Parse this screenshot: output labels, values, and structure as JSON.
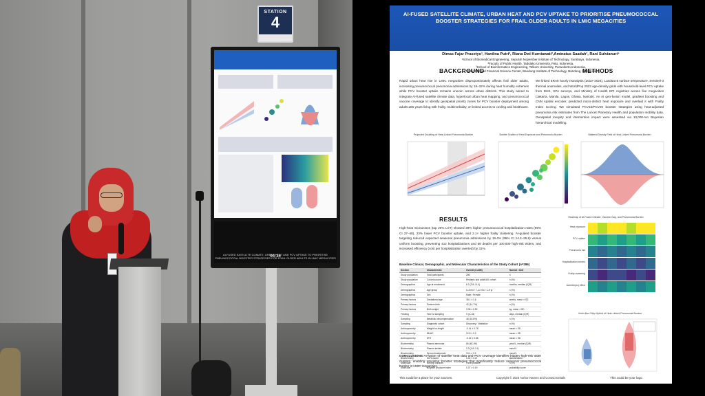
{
  "photo": {
    "station_sign": {
      "label": "STATION",
      "number": "4"
    },
    "monitor": {
      "footer_text": "AI-FUSED SATELLITE CLIMATE, URBAN HEAT AND PCV UPTAKE TO PRIORITISE PNEUMOCOCCAL BOOSTER STRATEGIES FOR FRAIL OLDER ADULTS IN LMIC MEGACITIES",
      "time": "04:14"
    }
  },
  "poster": {
    "title": "AI-FUSED SATELLITE CLIMATE, URBAN HEAT AND PCV UPTAKE TO PRIORITISE PNEUMOCOCCAL BOOSTER STRATEGIES FOR FRAIL OLDER ADULTS IN LMIC MEGACITIES",
    "authors": "Dimas Fajar Prasetyo¹, Hardina Putri², Riana Dwi Kurniawati³,Aminatus Saadah³, Rani Sulvianuri⁴",
    "affiliations": [
      "¹School of Biomedical Engineering, Sepuluh Nopember Institute of Technology, Surabaya, Indonesia,",
      "²Faculty of Public Health, Tadulako University, Palu, Indonesia,",
      "³School of Bioinformatics Engineering, Telkom University, Purwokerto,Indonesia,",
      "⁴Industrial and Financial Science Center, Bandung Institute of Technology, Bandung, Indonesia"
    ],
    "sections": {
      "background_heading": "BACKGROUND",
      "background_text": "Rapid urban heat rise in LMIC megacities disproportionately affects frail older adults, increasing pneumococcal pneumonia admissions by 18–32% during heat humidity extremes while PCV booster uptake remains uneven across urban districts. This study aimed to integrate AI-fused satellite climate data, hyperlocal urban heat mapping, and pneumococcal vaccine coverage to identify geospatial priority zones for PCV booster deployment among adults ≥65 years living with frailty, multimorbidity, or limited access to cooling and healthcare.",
      "methods_heading": "METHODS",
      "methods_text": "We linked ERA5 hourly reanalysis (2010–2024), Landsat 8 surface temperature, Sentinel-3 thermal anomalies, and WorldPop 2023 age-density grids with household-level PCV uptake from DHS, SPA surveys, and Ministry of Health EPI registries across five megacities (Jakarta, Manila, Lagos, Dhaka, Nairobi). An AI geo-fusion model, gradient boosting and CNN spatial encoder, predicted micro-district heat exposure and overlaid it with Frailty Index scoring. We simulated PCV15/PCV20 booster strategies using heat-adjusted pneumonia risk estimates from The Lancet Planetary Health and population mobility data. Geospatial inequity and intervention impact were assessed via 10,000-run Bayesian hierarchical modelling.",
      "results_heading": "RESULTS",
      "results_text": "High-heat microzones (top 20% LST) showed 38% higher pneumococcal hospitalization rates (95% CI 27–48), 23% lower PCV booster uptake, and 2.1× higher frailty clustering. AI-guided booster targeting reduced expected seasonal pneumonia admissions by 19.4% (95% CI 14.2–25.8) versus uniform boosting, preventing 412 hospitalizations and 58 deaths per 100,000 high-risk elders, and increased efficiency (cost per hospitalization averted) by 31%.",
      "conclusions_label": "CONCLUSIONS",
      "conclusions_text": "AI-fusion of satellite heat data and PCV coverage identifies hidden high-risk older clusters, enabling precision booster strategies that significantly reduce seasonal pneumococcal burden in LMIC megacities."
    },
    "figure_titles": {
      "fig1": "Projected Doubling of Heat-Linked Pneumonia Burden",
      "fig2": "Bubble Scatter of Heat Exposure and Pneumonia Burden",
      "fig3": "Bilateral Density Field of Heat-Linked Pneumonia Burden",
      "fig4": "Heatmap of AI-Fused Climate, Vaccine Gap, and Pneumonia Burden",
      "fig5": "Violin-Box-Strip Hybrid of Heat-Linked Pneumonia Burden"
    },
    "heatmap_rows": [
      "Heat exposure",
      "PCV uptake",
      "Pneumonia risk",
      "Hospitalization burden",
      "Frailty clustering",
      "Averted/proj effect"
    ],
    "table": {
      "caption": "Baseline Clinical, Demographic, and Molecular Characteristics of the Study Cohort (n=286)",
      "headers": [
        "Section",
        "Characteristic",
        "Overall (n=286)",
        "Normal / Unit"
      ],
      "rows": [
        [
          "Study population",
          "Total participants",
          "286",
          "n"
        ],
        [
          "Study population",
          "Cohort source",
          "Pediatric and adult AKI cohort",
          "n (%)"
        ],
        [
          "Demographics",
          "Age at enrollment",
          "6.2 (3.8–11.4)",
          "months, median (IQR)"
        ],
        [
          "Demographics",
          "Age group",
          "0–6 mo / 7–12 mo / 1–5 yr",
          "n (%)"
        ],
        [
          "Demographics",
          "Sex",
          "Male / Female",
          "n (%)"
        ],
        [
          "Primary factors",
          "Gestational age",
          "38.1 ± 1.6",
          "weeks, mean ± SD"
        ],
        [
          "Primary factors",
          "Preterm birth",
          "42 (14.7%)",
          "n (%)"
        ],
        [
          "Primary factors",
          "Birth weight",
          "3.08 ± 0.52",
          "kg, mean ± SD"
        ],
        [
          "Feeding",
          "Time to sampling",
          "9 (4–16)",
          "days, median (IQR)"
        ],
        [
          "Sampling",
          "Metabolic decompensation",
          "48 (16.8%)",
          "n (%)"
        ],
        [
          "Sampling",
          "Diagnostic cohort",
          "Discovery / Validation",
          "n (%)"
        ],
        [
          "Anthropometry",
          "Weight-for-length",
          "-0.41 ± 0.78",
          "mean ± SD"
        ],
        [
          "Anthropometry",
          "MUAC",
          "12.8 ± 0.9",
          "mean ± SD"
        ],
        [
          "Anthropometry",
          "HFZ",
          "-0.32 ± 0.86",
          "mean ± SD"
        ],
        [
          "Biochemistry",
          "Plasma ammonia",
          "66 (48–96)",
          "µmol/L, median (IQR)"
        ],
        [
          "Biochemistry",
          "Plasma lactate",
          "2.3 (1.6–3.1)",
          "mmol/L"
        ],
        [
          "Biochemistry",
          "Serum bicarbonate",
          "19.4 ± 3.2",
          "mmol/L"
        ],
        [
          "Biochemistry",
          "SCFA score",
          "0.42 ± 0.21",
          "standardised"
        ],
        [
          "Molecular",
          "Genetic variants",
          "Panel positive",
          "n (%)"
        ],
        [
          "Molecular",
          "Butyrate producer index",
          "0.37 ± 0.19",
          "probability score"
        ]
      ]
    },
    "footer": {
      "left": "This could be a place for your sources.",
      "center": "Copyright © 2026 Author Names and Contact Details",
      "right": "This could be your logo."
    }
  },
  "colors": {
    "title_bar": "#1d57b8",
    "red_series": "#e05656",
    "blue_series": "#4f83c9"
  }
}
